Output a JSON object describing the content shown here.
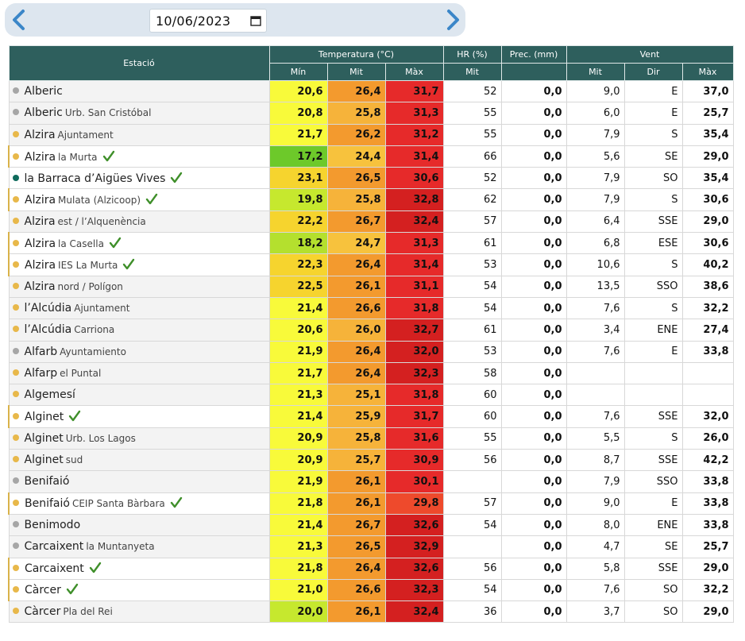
{
  "header": {
    "date_value": "10/06/2023"
  },
  "colors": {
    "header_bg": "#2e5f5d",
    "dot_gray": "#a6a6a6",
    "dot_yellow": "#e8b84a",
    "dot_teal": "#0f6b5c",
    "check_green": "#3f8f2a"
  },
  "table": {
    "group_headers": {
      "station": "Estació",
      "temperature": "Temperatura (°C)",
      "hr": "HR (%)",
      "prec": "Prec. (mm)",
      "wind": "Vent"
    },
    "sub_headers": {
      "tmin": "Mín",
      "tmit": "Mit",
      "tmax": "Màx",
      "hrmit": "Mit",
      "vmit": "Mit",
      "vdir": "Dir",
      "vmax": "Màx"
    },
    "rows": [
      {
        "name": "Alberic",
        "loc": "",
        "dot": "#a6a6a6",
        "check": false,
        "hl": false,
        "shaded": true,
        "tmin": "20,6",
        "tmit": "26,4",
        "tmax": "31,7",
        "tmin_color": "#f8fa3a",
        "tmit_color": "#f39a2e",
        "tmax_color": "#e62a2a",
        "hr": "52",
        "prec": "0,0",
        "vmit": "9,0",
        "vdir": "E",
        "vmax": "37,0"
      },
      {
        "name": "Alberic",
        "loc": "Urb. San Cristóbal",
        "dot": "#a6a6a6",
        "check": false,
        "hl": false,
        "shaded": true,
        "tmin": "20,8",
        "tmit": "25,8",
        "tmax": "31,3",
        "tmin_color": "#f8fa3a",
        "tmit_color": "#f6b33a",
        "tmax_color": "#e62a2a",
        "hr": "55",
        "prec": "0,0",
        "vmit": "6,0",
        "vdir": "E",
        "vmax": "25,7"
      },
      {
        "name": "Alzira",
        "loc": "Ajuntament",
        "dot": "#e8b84a",
        "check": false,
        "hl": false,
        "shaded": true,
        "tmin": "21,7",
        "tmit": "26,2",
        "tmax": "31,2",
        "tmin_color": "#f8fa3a",
        "tmit_color": "#f39a2e",
        "tmax_color": "#e62a2a",
        "hr": "55",
        "prec": "0,0",
        "vmit": "7,9",
        "vdir": "S",
        "vmax": "35,4"
      },
      {
        "name": "Alzira",
        "loc": "la Murta",
        "dot": "#e8b84a",
        "check": true,
        "hl": true,
        "shaded": false,
        "tmin": "17,2",
        "tmit": "24,4",
        "tmax": "31,4",
        "tmin_color": "#6dc92a",
        "tmit_color": "#f7c23d",
        "tmax_color": "#e62a2a",
        "hr": "66",
        "prec": "0,0",
        "vmit": "5,6",
        "vdir": "SE",
        "vmax": "29,0"
      },
      {
        "name": "la Barraca d’Aigües Vives",
        "loc": "",
        "dot": "#0f6b5c",
        "check": true,
        "hl": false,
        "shaded": false,
        "tmin": "23,1",
        "tmit": "26,5",
        "tmax": "30,6",
        "tmin_color": "#f6d42e",
        "tmit_color": "#f39a2e",
        "tmax_color": "#e62a2a",
        "hr": "52",
        "prec": "0,0",
        "vmit": "7,9",
        "vdir": "SO",
        "vmax": "35,4"
      },
      {
        "name": "Alzira",
        "loc": "Mulata (Alzicoop)",
        "dot": "#e8b84a",
        "check": true,
        "hl": true,
        "shaded": false,
        "tmin": "19,8",
        "tmit": "25,8",
        "tmax": "32,8",
        "tmin_color": "#c6e82e",
        "tmit_color": "#f6b33a",
        "tmax_color": "#d42020",
        "hr": "62",
        "prec": "0,0",
        "vmit": "7,9",
        "vdir": "S",
        "vmax": "30,6"
      },
      {
        "name": "Alzira",
        "loc": "est / l’Alquenència",
        "dot": "#e8b84a",
        "check": false,
        "hl": false,
        "shaded": true,
        "tmin": "22,2",
        "tmit": "26,7",
        "tmax": "32,4",
        "tmin_color": "#f6d42e",
        "tmit_color": "#f39a2e",
        "tmax_color": "#d42020",
        "hr": "57",
        "prec": "0,0",
        "vmit": "6,4",
        "vdir": "SSE",
        "vmax": "29,0"
      },
      {
        "name": "Alzira",
        "loc": "la Casella",
        "dot": "#e8b84a",
        "check": true,
        "hl": true,
        "shaded": false,
        "tmin": "18,2",
        "tmit": "24,7",
        "tmax": "31,3",
        "tmin_color": "#b4e02e",
        "tmit_color": "#f7c23d",
        "tmax_color": "#e62a2a",
        "hr": "61",
        "prec": "0,0",
        "vmit": "6,8",
        "vdir": "ESE",
        "vmax": "30,6"
      },
      {
        "name": "Alzira",
        "loc": "IES La Murta",
        "dot": "#e8b84a",
        "check": true,
        "hl": true,
        "shaded": false,
        "tmin": "22,3",
        "tmit": "26,4",
        "tmax": "31,4",
        "tmin_color": "#f6d42e",
        "tmit_color": "#f39a2e",
        "tmax_color": "#e62a2a",
        "hr": "53",
        "prec": "0,0",
        "vmit": "10,6",
        "vdir": "S",
        "vmax": "40,2"
      },
      {
        "name": "Alzira",
        "loc": "nord / Polígon",
        "dot": "#e8b84a",
        "check": false,
        "hl": false,
        "shaded": true,
        "tmin": "22,5",
        "tmit": "26,1",
        "tmax": "31,1",
        "tmin_color": "#f6d42e",
        "tmit_color": "#f39a2e",
        "tmax_color": "#e62a2a",
        "hr": "54",
        "prec": "0,0",
        "vmit": "13,5",
        "vdir": "SSO",
        "vmax": "38,6"
      },
      {
        "name": "l’Alcúdia",
        "loc": "Ajuntament",
        "dot": "#e8b84a",
        "check": false,
        "hl": false,
        "shaded": true,
        "tmin": "21,4",
        "tmit": "26,6",
        "tmax": "31,8",
        "tmin_color": "#f8fa3a",
        "tmit_color": "#f39a2e",
        "tmax_color": "#e62a2a",
        "hr": "54",
        "prec": "0,0",
        "vmit": "7,6",
        "vdir": "S",
        "vmax": "32,2"
      },
      {
        "name": "l’Alcúdia",
        "loc": "Carriona",
        "dot": "#e8b84a",
        "check": false,
        "hl": false,
        "shaded": true,
        "tmin": "20,6",
        "tmit": "26,0",
        "tmax": "32,7",
        "tmin_color": "#f8fa3a",
        "tmit_color": "#f6b33a",
        "tmax_color": "#d42020",
        "hr": "61",
        "prec": "0,0",
        "vmit": "3,4",
        "vdir": "ENE",
        "vmax": "27,4"
      },
      {
        "name": "Alfarb",
        "loc": "Ayuntamiento",
        "dot": "#a6a6a6",
        "check": false,
        "hl": false,
        "shaded": true,
        "tmin": "21,9",
        "tmit": "26,4",
        "tmax": "32,0",
        "tmin_color": "#f8fa3a",
        "tmit_color": "#f39a2e",
        "tmax_color": "#d42020",
        "hr": "53",
        "prec": "0,0",
        "vmit": "7,6",
        "vdir": "E",
        "vmax": "33,8"
      },
      {
        "name": "Alfarp",
        "loc": "el Puntal",
        "dot": "#e8b84a",
        "check": false,
        "hl": false,
        "shaded": true,
        "tmin": "21,7",
        "tmit": "26,4",
        "tmax": "32,3",
        "tmin_color": "#f8fa3a",
        "tmit_color": "#f39a2e",
        "tmax_color": "#d42020",
        "hr": "58",
        "prec": "0,0",
        "vmit": "",
        "vdir": "",
        "vmax": ""
      },
      {
        "name": "Algemesí",
        "loc": "",
        "dot": "#e8b84a",
        "check": false,
        "hl": false,
        "shaded": true,
        "tmin": "21,3",
        "tmit": "25,1",
        "tmax": "31,8",
        "tmin_color": "#f8fa3a",
        "tmit_color": "#f6b33a",
        "tmax_color": "#e62a2a",
        "hr": "60",
        "prec": "0,0",
        "vmit": "",
        "vdir": "",
        "vmax": ""
      },
      {
        "name": "Alginet",
        "loc": "",
        "dot": "#e8b84a",
        "check": true,
        "hl": true,
        "shaded": false,
        "tmin": "21,4",
        "tmit": "25,9",
        "tmax": "31,7",
        "tmin_color": "#f8fa3a",
        "tmit_color": "#f6b33a",
        "tmax_color": "#e62a2a",
        "hr": "60",
        "prec": "0,0",
        "vmit": "7,6",
        "vdir": "SSE",
        "vmax": "32,0"
      },
      {
        "name": "Alginet",
        "loc": "Urb. Los Lagos",
        "dot": "#e8b84a",
        "check": false,
        "hl": false,
        "shaded": true,
        "tmin": "20,9",
        "tmit": "25,8",
        "tmax": "31,6",
        "tmin_color": "#f8fa3a",
        "tmit_color": "#f6b33a",
        "tmax_color": "#e62a2a",
        "hr": "55",
        "prec": "0,0",
        "vmit": "5,5",
        "vdir": "S",
        "vmax": "26,0"
      },
      {
        "name": "Alginet",
        "loc": "sud",
        "dot": "#e8b84a",
        "check": false,
        "hl": false,
        "shaded": true,
        "tmin": "20,9",
        "tmit": "25,7",
        "tmax": "30,9",
        "tmin_color": "#f8fa3a",
        "tmit_color": "#f6b33a",
        "tmax_color": "#e62a2a",
        "hr": "56",
        "prec": "0,0",
        "vmit": "8,7",
        "vdir": "SSE",
        "vmax": "42,2"
      },
      {
        "name": "Benifaió",
        "loc": "",
        "dot": "#a6a6a6",
        "check": false,
        "hl": false,
        "shaded": true,
        "tmin": "21,9",
        "tmit": "26,1",
        "tmax": "30,1",
        "tmin_color": "#f8fa3a",
        "tmit_color": "#f39a2e",
        "tmax_color": "#e62a2a",
        "hr": "",
        "prec": "0,0",
        "vmit": "7,9",
        "vdir": "SSO",
        "vmax": "33,8"
      },
      {
        "name": "Benifaió",
        "loc": "CEIP Santa Bàrbara",
        "dot": "#e8b84a",
        "check": true,
        "hl": true,
        "shaded": false,
        "tmin": "21,8",
        "tmit": "26,1",
        "tmax": "29,8",
        "tmin_color": "#f8fa3a",
        "tmit_color": "#f39a2e",
        "tmax_color": "#ee4a2c",
        "hr": "57",
        "prec": "0,0",
        "vmit": "9,0",
        "vdir": "E",
        "vmax": "33,8"
      },
      {
        "name": "Benimodo",
        "loc": "",
        "dot": "#a6a6a6",
        "check": false,
        "hl": false,
        "shaded": true,
        "tmin": "21,4",
        "tmit": "26,7",
        "tmax": "32,6",
        "tmin_color": "#f8fa3a",
        "tmit_color": "#f39a2e",
        "tmax_color": "#d42020",
        "hr": "54",
        "prec": "0,0",
        "vmit": "8,0",
        "vdir": "ENE",
        "vmax": "33,8"
      },
      {
        "name": "Carcaixent",
        "loc": "la Muntanyeta",
        "dot": "#a6a6a6",
        "check": false,
        "hl": false,
        "shaded": true,
        "tmin": "21,3",
        "tmit": "26,5",
        "tmax": "32,9",
        "tmin_color": "#f8fa3a",
        "tmit_color": "#f39a2e",
        "tmax_color": "#d42020",
        "hr": "",
        "prec": "0,0",
        "vmit": "4,7",
        "vdir": "SE",
        "vmax": "25,7"
      },
      {
        "name": "Carcaixent",
        "loc": "",
        "dot": "#e8b84a",
        "check": true,
        "hl": true,
        "shaded": false,
        "tmin": "21,8",
        "tmit": "26,4",
        "tmax": "32,6",
        "tmin_color": "#f8fa3a",
        "tmit_color": "#f39a2e",
        "tmax_color": "#d42020",
        "hr": "56",
        "prec": "0,0",
        "vmit": "5,8",
        "vdir": "SSE",
        "vmax": "29,0"
      },
      {
        "name": "Càrcer",
        "loc": "",
        "dot": "#e8b84a",
        "check": true,
        "hl": true,
        "shaded": false,
        "tmin": "21,0",
        "tmit": "26,6",
        "tmax": "32,3",
        "tmin_color": "#f8fa3a",
        "tmit_color": "#f39a2e",
        "tmax_color": "#d42020",
        "hr": "54",
        "prec": "0,0",
        "vmit": "7,6",
        "vdir": "SO",
        "vmax": "32,2"
      },
      {
        "name": "Càrcer",
        "loc": "Pla del Rei",
        "dot": "#e8b84a",
        "check": false,
        "hl": false,
        "shaded": true,
        "tmin": "20,0",
        "tmit": "26,1",
        "tmax": "32,4",
        "tmin_color": "#c6e82e",
        "tmit_color": "#f39a2e",
        "tmax_color": "#d42020",
        "hr": "36",
        "prec": "0,0",
        "vmit": "3,7",
        "vdir": "SO",
        "vmax": "29,0"
      }
    ]
  }
}
